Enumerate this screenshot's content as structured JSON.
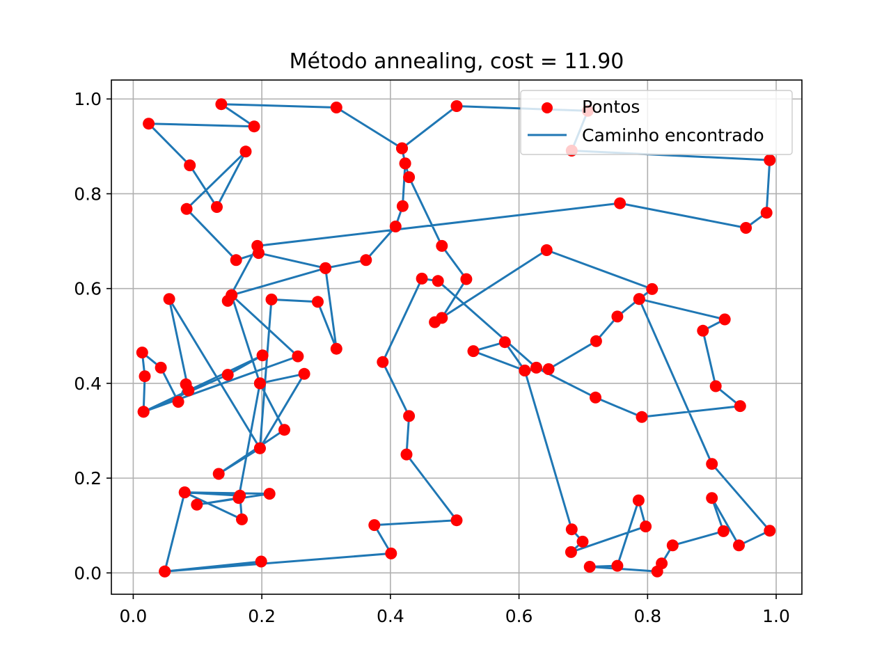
{
  "chart_data": {
    "type": "scatter",
    "title": "Método annealing, cost = 11.90",
    "xlabel": "",
    "ylabel": "",
    "xlim": [
      -0.034,
      1.04
    ],
    "ylim": [
      -0.045,
      1.04
    ],
    "xticks": [
      0.0,
      0.2,
      0.4,
      0.6,
      0.8,
      1.0
    ],
    "xtick_labels": [
      "0.0",
      "0.2",
      "0.4",
      "0.6",
      "0.8",
      "1.0"
    ],
    "yticks": [
      0.0,
      0.2,
      0.4,
      0.6,
      0.8,
      1.0
    ],
    "ytick_labels": [
      "0.0",
      "0.2",
      "0.4",
      "0.6",
      "0.8",
      "1.0"
    ],
    "grid": true,
    "legend": {
      "position": "upper right",
      "entries": [
        {
          "label": "Pontos",
          "marker": "dot",
          "color": "#ff0000"
        },
        {
          "label": "Caminho encontrado",
          "marker": "line",
          "color": "#1f77b4"
        }
      ]
    },
    "points_color": "#ff0000",
    "path_color": "#1f77b4",
    "series": [
      {
        "name": "Caminho encontrado",
        "points": [
          [
            0.049,
            0.003
          ],
          [
            0.401,
            0.041
          ],
          [
            0.375,
            0.101
          ],
          [
            0.503,
            0.111
          ],
          [
            0.425,
            0.25
          ],
          [
            0.429,
            0.331
          ],
          [
            0.388,
            0.445
          ],
          [
            0.449,
            0.621
          ],
          [
            0.474,
            0.616
          ],
          [
            0.627,
            0.433
          ],
          [
            0.719,
            0.37
          ],
          [
            0.791,
            0.329
          ],
          [
            0.944,
            0.352
          ],
          [
            0.906,
            0.394
          ],
          [
            0.886,
            0.511
          ],
          [
            0.92,
            0.535
          ],
          [
            0.787,
            0.578
          ],
          [
            0.753,
            0.541
          ],
          [
            0.72,
            0.489
          ],
          [
            0.646,
            0.43
          ],
          [
            0.609,
            0.427
          ],
          [
            0.578,
            0.487
          ],
          [
            0.529,
            0.468
          ],
          [
            0.609,
            0.427
          ],
          [
            0.682,
            0.092
          ],
          [
            0.699,
            0.066
          ],
          [
            0.681,
            0.044
          ],
          [
            0.797,
            0.098
          ],
          [
            0.786,
            0.153
          ],
          [
            0.753,
            0.015
          ],
          [
            0.71,
            0.013
          ],
          [
            0.815,
            0.003
          ],
          [
            0.822,
            0.02
          ],
          [
            0.839,
            0.058
          ],
          [
            0.918,
            0.088
          ],
          [
            0.9,
            0.158
          ],
          [
            0.942,
            0.058
          ],
          [
            0.99,
            0.089
          ],
          [
            0.9,
            0.23
          ],
          [
            0.787,
            0.578
          ],
          [
            0.807,
            0.599
          ],
          [
            0.643,
            0.681
          ],
          [
            0.469,
            0.529
          ],
          [
            0.48,
            0.538
          ],
          [
            0.518,
            0.62
          ],
          [
            0.48,
            0.69
          ],
          [
            0.429,
            0.835
          ],
          [
            0.423,
            0.864
          ],
          [
            0.418,
            0.896
          ],
          [
            0.503,
            0.985
          ],
          [
            0.707,
            0.975
          ],
          [
            0.682,
            0.891
          ],
          [
            0.99,
            0.871
          ],
          [
            0.985,
            0.76
          ],
          [
            0.953,
            0.728
          ],
          [
            0.757,
            0.78
          ],
          [
            0.193,
            0.69
          ],
          [
            0.147,
            0.574
          ],
          [
            0.153,
            0.586
          ],
          [
            0.299,
            0.643
          ],
          [
            0.195,
            0.675
          ],
          [
            0.16,
            0.66
          ],
          [
            0.083,
            0.768
          ],
          [
            0.175,
            0.889
          ],
          [
            0.13,
            0.772
          ],
          [
            0.088,
            0.86
          ],
          [
            0.024,
            0.948
          ],
          [
            0.188,
            0.942
          ],
          [
            0.137,
            0.989
          ],
          [
            0.316,
            0.982
          ],
          [
            0.418,
            0.896
          ],
          [
            0.423,
            0.864
          ],
          [
            0.419,
            0.774
          ],
          [
            0.408,
            0.731
          ],
          [
            0.362,
            0.66
          ],
          [
            0.299,
            0.643
          ],
          [
            0.316,
            0.473
          ],
          [
            0.287,
            0.572
          ],
          [
            0.215,
            0.577
          ],
          [
            0.197,
            0.263
          ],
          [
            0.056,
            0.578
          ],
          [
            0.086,
            0.385
          ],
          [
            0.082,
            0.398
          ],
          [
            0.07,
            0.361
          ],
          [
            0.043,
            0.433
          ],
          [
            0.014,
            0.465
          ],
          [
            0.018,
            0.415
          ],
          [
            0.016,
            0.34
          ],
          [
            0.201,
            0.459
          ],
          [
            0.147,
            0.418
          ],
          [
            0.016,
            0.34
          ],
          [
            0.256,
            0.457
          ],
          [
            0.153,
            0.586
          ],
          [
            0.197,
            0.4
          ],
          [
            0.266,
            0.42
          ],
          [
            0.197,
            0.263
          ],
          [
            0.133,
            0.209
          ],
          [
            0.235,
            0.302
          ],
          [
            0.197,
            0.4
          ],
          [
            0.164,
            0.158
          ],
          [
            0.099,
            0.144
          ],
          [
            0.212,
            0.167
          ],
          [
            0.08,
            0.17
          ],
          [
            0.166,
            0.163
          ],
          [
            0.169,
            0.113
          ],
          [
            0.08,
            0.17
          ],
          [
            0.049,
            0.003
          ],
          [
            0.199,
            0.024
          ]
        ]
      }
    ]
  }
}
